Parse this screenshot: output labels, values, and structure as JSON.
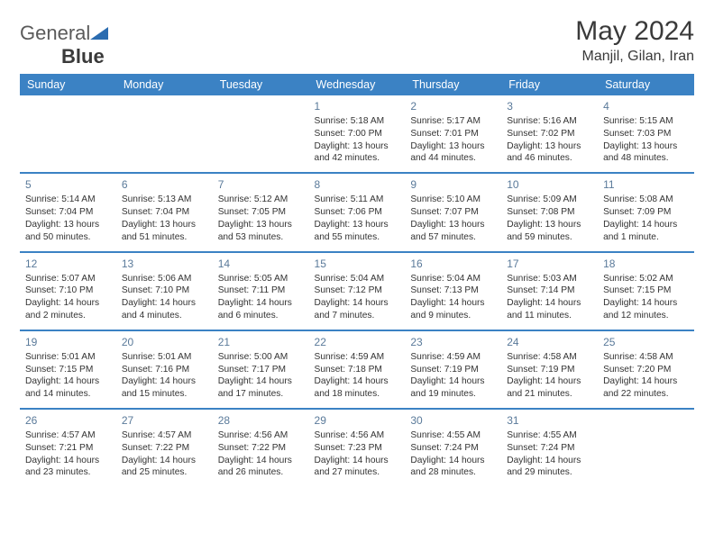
{
  "logo": {
    "text_a": "General",
    "text_b": "Blue"
  },
  "title": "May 2024",
  "location": "Manjil, Gilan, Iran",
  "colors": {
    "header_bg": "#3b82c4",
    "header_text": "#ffffff",
    "border": "#3b82c4",
    "daynum": "#5a7a9a",
    "body_text": "#333333",
    "logo_gray": "#5a5a5a",
    "logo_accent": "#2b6cb0"
  },
  "day_headers": [
    "Sunday",
    "Monday",
    "Tuesday",
    "Wednesday",
    "Thursday",
    "Friday",
    "Saturday"
  ],
  "weeks": [
    [
      null,
      null,
      null,
      {
        "n": "1",
        "sr": "Sunrise: 5:18 AM",
        "ss": "Sunset: 7:00 PM",
        "d1": "Daylight: 13 hours",
        "d2": "and 42 minutes."
      },
      {
        "n": "2",
        "sr": "Sunrise: 5:17 AM",
        "ss": "Sunset: 7:01 PM",
        "d1": "Daylight: 13 hours",
        "d2": "and 44 minutes."
      },
      {
        "n": "3",
        "sr": "Sunrise: 5:16 AM",
        "ss": "Sunset: 7:02 PM",
        "d1": "Daylight: 13 hours",
        "d2": "and 46 minutes."
      },
      {
        "n": "4",
        "sr": "Sunrise: 5:15 AM",
        "ss": "Sunset: 7:03 PM",
        "d1": "Daylight: 13 hours",
        "d2": "and 48 minutes."
      }
    ],
    [
      {
        "n": "5",
        "sr": "Sunrise: 5:14 AM",
        "ss": "Sunset: 7:04 PM",
        "d1": "Daylight: 13 hours",
        "d2": "and 50 minutes."
      },
      {
        "n": "6",
        "sr": "Sunrise: 5:13 AM",
        "ss": "Sunset: 7:04 PM",
        "d1": "Daylight: 13 hours",
        "d2": "and 51 minutes."
      },
      {
        "n": "7",
        "sr": "Sunrise: 5:12 AM",
        "ss": "Sunset: 7:05 PM",
        "d1": "Daylight: 13 hours",
        "d2": "and 53 minutes."
      },
      {
        "n": "8",
        "sr": "Sunrise: 5:11 AM",
        "ss": "Sunset: 7:06 PM",
        "d1": "Daylight: 13 hours",
        "d2": "and 55 minutes."
      },
      {
        "n": "9",
        "sr": "Sunrise: 5:10 AM",
        "ss": "Sunset: 7:07 PM",
        "d1": "Daylight: 13 hours",
        "d2": "and 57 minutes."
      },
      {
        "n": "10",
        "sr": "Sunrise: 5:09 AM",
        "ss": "Sunset: 7:08 PM",
        "d1": "Daylight: 13 hours",
        "d2": "and 59 minutes."
      },
      {
        "n": "11",
        "sr": "Sunrise: 5:08 AM",
        "ss": "Sunset: 7:09 PM",
        "d1": "Daylight: 14 hours",
        "d2": "and 1 minute."
      }
    ],
    [
      {
        "n": "12",
        "sr": "Sunrise: 5:07 AM",
        "ss": "Sunset: 7:10 PM",
        "d1": "Daylight: 14 hours",
        "d2": "and 2 minutes."
      },
      {
        "n": "13",
        "sr": "Sunrise: 5:06 AM",
        "ss": "Sunset: 7:10 PM",
        "d1": "Daylight: 14 hours",
        "d2": "and 4 minutes."
      },
      {
        "n": "14",
        "sr": "Sunrise: 5:05 AM",
        "ss": "Sunset: 7:11 PM",
        "d1": "Daylight: 14 hours",
        "d2": "and 6 minutes."
      },
      {
        "n": "15",
        "sr": "Sunrise: 5:04 AM",
        "ss": "Sunset: 7:12 PM",
        "d1": "Daylight: 14 hours",
        "d2": "and 7 minutes."
      },
      {
        "n": "16",
        "sr": "Sunrise: 5:04 AM",
        "ss": "Sunset: 7:13 PM",
        "d1": "Daylight: 14 hours",
        "d2": "and 9 minutes."
      },
      {
        "n": "17",
        "sr": "Sunrise: 5:03 AM",
        "ss": "Sunset: 7:14 PM",
        "d1": "Daylight: 14 hours",
        "d2": "and 11 minutes."
      },
      {
        "n": "18",
        "sr": "Sunrise: 5:02 AM",
        "ss": "Sunset: 7:15 PM",
        "d1": "Daylight: 14 hours",
        "d2": "and 12 minutes."
      }
    ],
    [
      {
        "n": "19",
        "sr": "Sunrise: 5:01 AM",
        "ss": "Sunset: 7:15 PM",
        "d1": "Daylight: 14 hours",
        "d2": "and 14 minutes."
      },
      {
        "n": "20",
        "sr": "Sunrise: 5:01 AM",
        "ss": "Sunset: 7:16 PM",
        "d1": "Daylight: 14 hours",
        "d2": "and 15 minutes."
      },
      {
        "n": "21",
        "sr": "Sunrise: 5:00 AM",
        "ss": "Sunset: 7:17 PM",
        "d1": "Daylight: 14 hours",
        "d2": "and 17 minutes."
      },
      {
        "n": "22",
        "sr": "Sunrise: 4:59 AM",
        "ss": "Sunset: 7:18 PM",
        "d1": "Daylight: 14 hours",
        "d2": "and 18 minutes."
      },
      {
        "n": "23",
        "sr": "Sunrise: 4:59 AM",
        "ss": "Sunset: 7:19 PM",
        "d1": "Daylight: 14 hours",
        "d2": "and 19 minutes."
      },
      {
        "n": "24",
        "sr": "Sunrise: 4:58 AM",
        "ss": "Sunset: 7:19 PM",
        "d1": "Daylight: 14 hours",
        "d2": "and 21 minutes."
      },
      {
        "n": "25",
        "sr": "Sunrise: 4:58 AM",
        "ss": "Sunset: 7:20 PM",
        "d1": "Daylight: 14 hours",
        "d2": "and 22 minutes."
      }
    ],
    [
      {
        "n": "26",
        "sr": "Sunrise: 4:57 AM",
        "ss": "Sunset: 7:21 PM",
        "d1": "Daylight: 14 hours",
        "d2": "and 23 minutes."
      },
      {
        "n": "27",
        "sr": "Sunrise: 4:57 AM",
        "ss": "Sunset: 7:22 PM",
        "d1": "Daylight: 14 hours",
        "d2": "and 25 minutes."
      },
      {
        "n": "28",
        "sr": "Sunrise: 4:56 AM",
        "ss": "Sunset: 7:22 PM",
        "d1": "Daylight: 14 hours",
        "d2": "and 26 minutes."
      },
      {
        "n": "29",
        "sr": "Sunrise: 4:56 AM",
        "ss": "Sunset: 7:23 PM",
        "d1": "Daylight: 14 hours",
        "d2": "and 27 minutes."
      },
      {
        "n": "30",
        "sr": "Sunrise: 4:55 AM",
        "ss": "Sunset: 7:24 PM",
        "d1": "Daylight: 14 hours",
        "d2": "and 28 minutes."
      },
      {
        "n": "31",
        "sr": "Sunrise: 4:55 AM",
        "ss": "Sunset: 7:24 PM",
        "d1": "Daylight: 14 hours",
        "d2": "and 29 minutes."
      },
      null
    ]
  ]
}
